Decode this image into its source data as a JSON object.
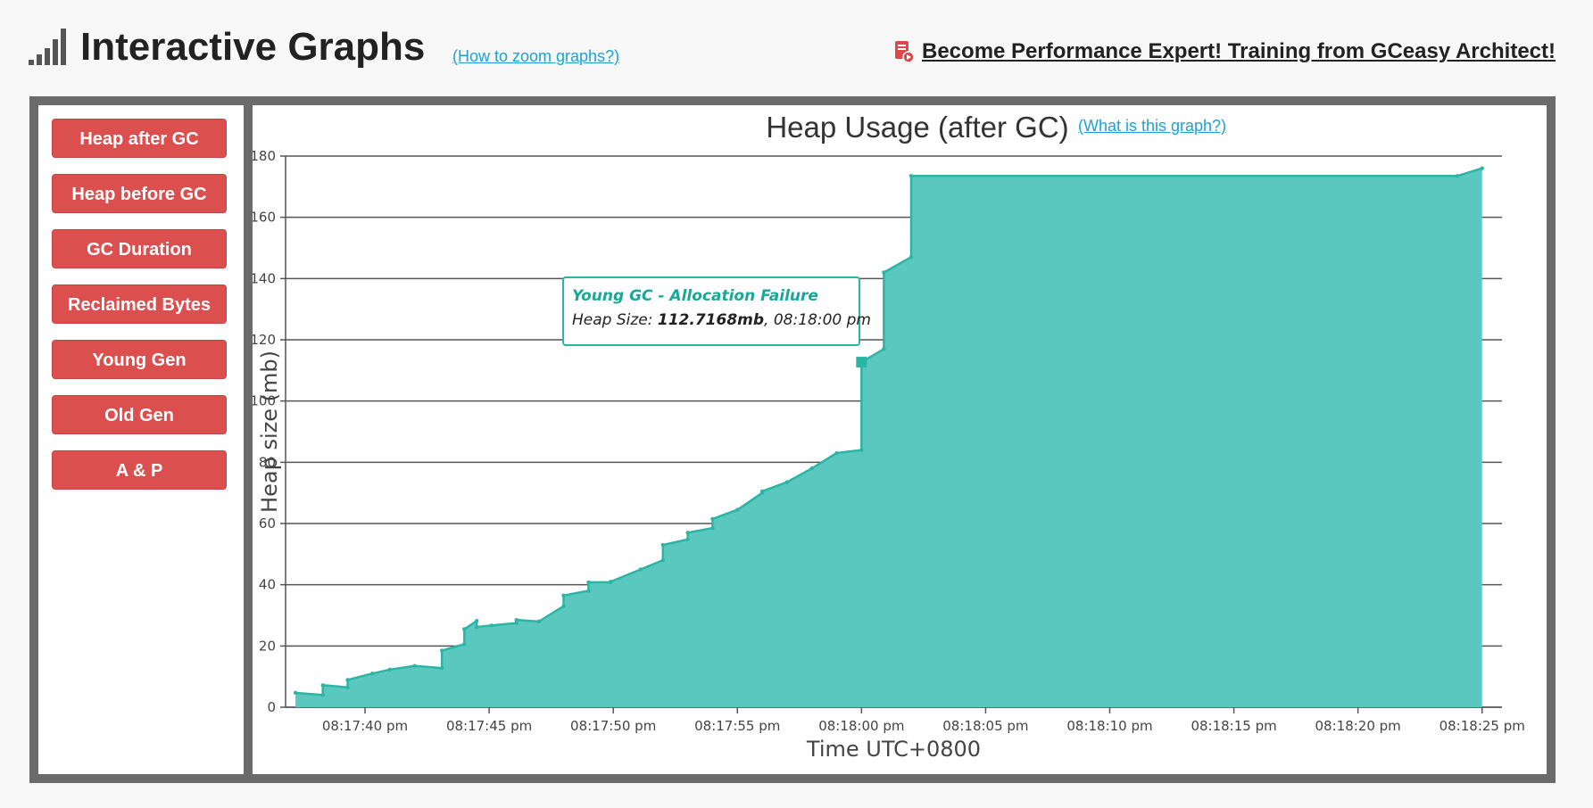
{
  "header": {
    "title": "Interactive Graphs",
    "zoom_link": "(How to zoom graphs?)",
    "promo_text": "Become Performance Expert! Training from GCeasy Architect!",
    "icons": {
      "title_icon": "signal-bars-icon",
      "promo_icon": "training-document-icon"
    }
  },
  "sidebar": {
    "buttons": [
      "Heap after GC",
      "Heap before GC",
      "GC Duration",
      "Reclaimed Bytes",
      "Young Gen",
      "Old Gen",
      "A & P"
    ]
  },
  "colors": {
    "accent": "#2bb5a5",
    "fill": "#5bc8c0",
    "button": "#dc4f4f",
    "link": "#1aa3d9",
    "frame": "#6b6b6b"
  },
  "chart": {
    "help_link": "(What is this graph?)",
    "tooltip": {
      "title": "Young GC - Allocation Failure",
      "label": "Heap Size: ",
      "value": "112.7168mb",
      "time": ", 08:18:00 pm"
    }
  },
  "chart_data": {
    "type": "area",
    "title": "Heap Usage (after GC)",
    "xlabel": "Time UTC+0800",
    "ylabel": "Heap size (mb)",
    "ylim": [
      0,
      180
    ],
    "yticks": [
      0,
      20,
      40,
      60,
      80,
      100,
      120,
      140,
      160,
      180
    ],
    "xticks": [
      "08:17:40 pm",
      "08:17:45 pm",
      "08:17:50 pm",
      "08:17:55 pm",
      "08:18:00 pm",
      "08:18:05 pm",
      "08:18:10 pm",
      "08:18:15 pm",
      "08:18:20 pm",
      "08:18:25 pm"
    ],
    "xlim": [
      "08:17:36.8 pm",
      "08:18:25.8 pm"
    ],
    "grid": true,
    "legend": "none",
    "highlight": {
      "x": "08:18:00.0 pm",
      "y": 112.7
    },
    "series": [
      {
        "x": [
          "08:17:37.2 pm",
          "08:17:38.3 pm",
          "08:17:38.3 pm",
          "08:17:39.3 pm",
          "08:17:39.3 pm",
          "08:17:40.3 pm",
          "08:17:41.0 pm",
          "08:17:42.0 pm",
          "08:17:43.1 pm",
          "08:17:43.1 pm",
          "08:17:44.0 pm",
          "08:17:44.0 pm",
          "08:17:44.5 pm",
          "08:17:44.5 pm",
          "08:17:45.1 pm",
          "08:17:46.1 pm",
          "08:17:46.1 pm",
          "08:17:47.0 pm",
          "08:17:48.0 pm",
          "08:17:48.0 pm",
          "08:17:49.0 pm",
          "08:17:49.0 pm",
          "08:17:49.9 pm",
          "08:17:49.9 pm",
          "08:17:51.1 pm",
          "08:17:52.0 pm",
          "08:17:52.0 pm",
          "08:17:53.0 pm",
          "08:17:53.0 pm",
          "08:17:54.0 pm",
          "08:17:54.0 pm",
          "08:17:55.0 pm",
          "08:17:56.0 pm",
          "08:17:56.0 pm",
          "08:17:57.0 pm",
          "08:17:58.0 pm",
          "08:17:59.0 pm",
          "08:18:00.0 pm",
          "08:18:00.0 pm",
          "08:18:00.9 pm",
          "08:18:00.9 pm",
          "08:18:02.0 pm",
          "08:18:02.0 pm",
          "08:18:24.0 pm",
          "08:18:25.0 pm"
        ],
        "y": [
          4.7,
          4.0,
          7.2,
          6.5,
          8.9,
          11.0,
          12.3,
          13.5,
          12.8,
          18.5,
          20.6,
          25.5,
          28.2,
          26.2,
          26.7,
          27.5,
          28.5,
          28.0,
          33.0,
          36.5,
          38.0,
          40.8,
          40.8,
          41.0,
          45.0,
          48.0,
          53.0,
          54.8,
          57.0,
          58.5,
          61.5,
          64.5,
          70.0,
          70.5,
          73.5,
          78.0,
          83.0,
          84.0,
          112.7,
          117.0,
          142.0,
          147.0,
          173.5,
          173.5,
          176.0
        ]
      }
    ]
  }
}
